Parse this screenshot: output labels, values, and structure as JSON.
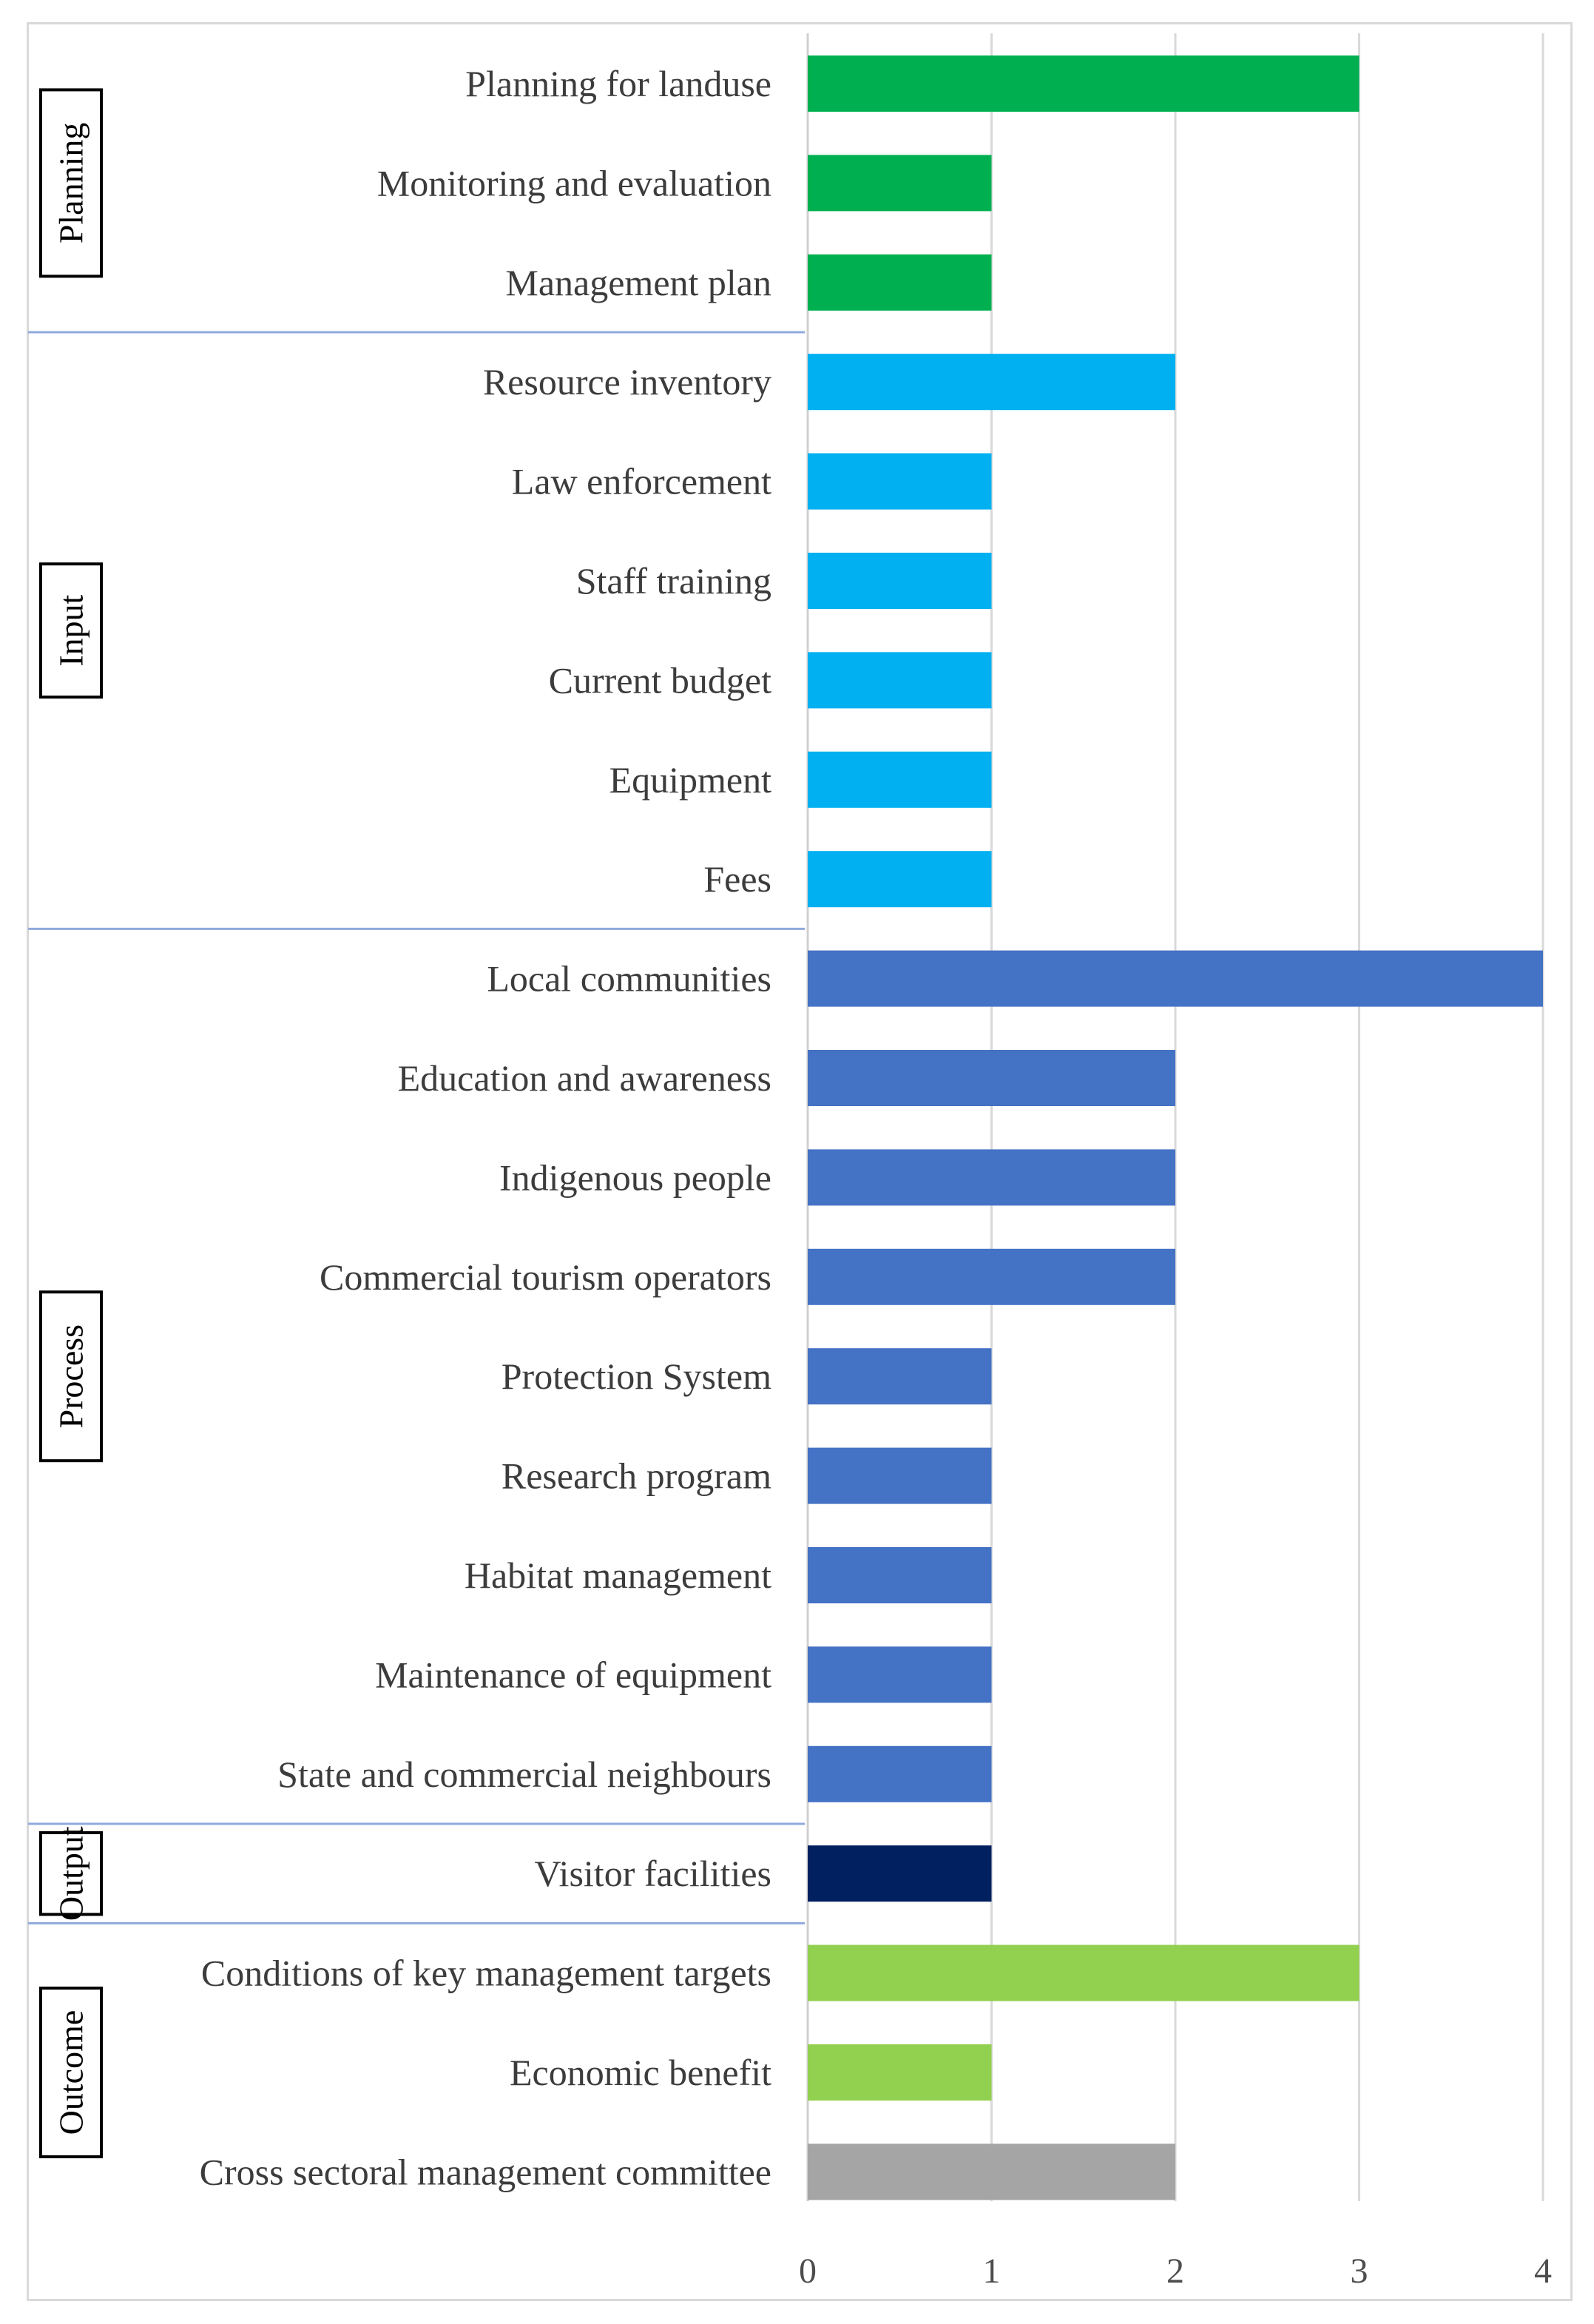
{
  "chart_data": {
    "type": "bar",
    "orientation": "horizontal",
    "title": "",
    "xlabel": "",
    "ylabel": "",
    "xlim": [
      0,
      4
    ],
    "x_ticks": [
      "0",
      "1",
      "2",
      "3",
      "4"
    ],
    "grid": true,
    "categories": [
      "Planning for landuse",
      "Monitoring and evaluation",
      "Management plan",
      "Resource inventory",
      "Law enforcement",
      "Staff training",
      "Current budget",
      "Equipment",
      "Fees",
      "Local communities",
      "Education and awareness",
      "Indigenous people",
      "Commercial tourism operators",
      "Protection System",
      "Research program",
      "Habitat management",
      "Maintenance of equipment",
      "State and commercial neighbours",
      "Visitor facilities",
      "Conditions of key management targets",
      "Economic benefit",
      "Cross sectoral management committee"
    ],
    "values": [
      3,
      1,
      1,
      2,
      1,
      1,
      1,
      1,
      1,
      4,
      2,
      2,
      2,
      1,
      1,
      1,
      1,
      1,
      1,
      3,
      1,
      2
    ],
    "bar_groups": [
      "planning",
      "planning",
      "planning",
      "input",
      "input",
      "input",
      "input",
      "input",
      "input",
      "process",
      "process",
      "process",
      "process",
      "process",
      "process",
      "process",
      "process",
      "process",
      "output",
      "outcome",
      "outcome",
      "other"
    ],
    "colors": {
      "planning": "#00b050",
      "input": "#00b0f0",
      "process": "#4472c4",
      "output": "#002060",
      "outcome": "#92d050",
      "other": "#a5a5a5"
    },
    "groups": [
      {
        "name": "Planning",
        "first": 0,
        "last": 2
      },
      {
        "name": "Input",
        "first": 3,
        "last": 8
      },
      {
        "name": "Process",
        "first": 9,
        "last": 17
      },
      {
        "name": "Output",
        "first": 18,
        "last": 18
      },
      {
        "name": "Outcome",
        "first": 19,
        "last": 21
      }
    ]
  }
}
